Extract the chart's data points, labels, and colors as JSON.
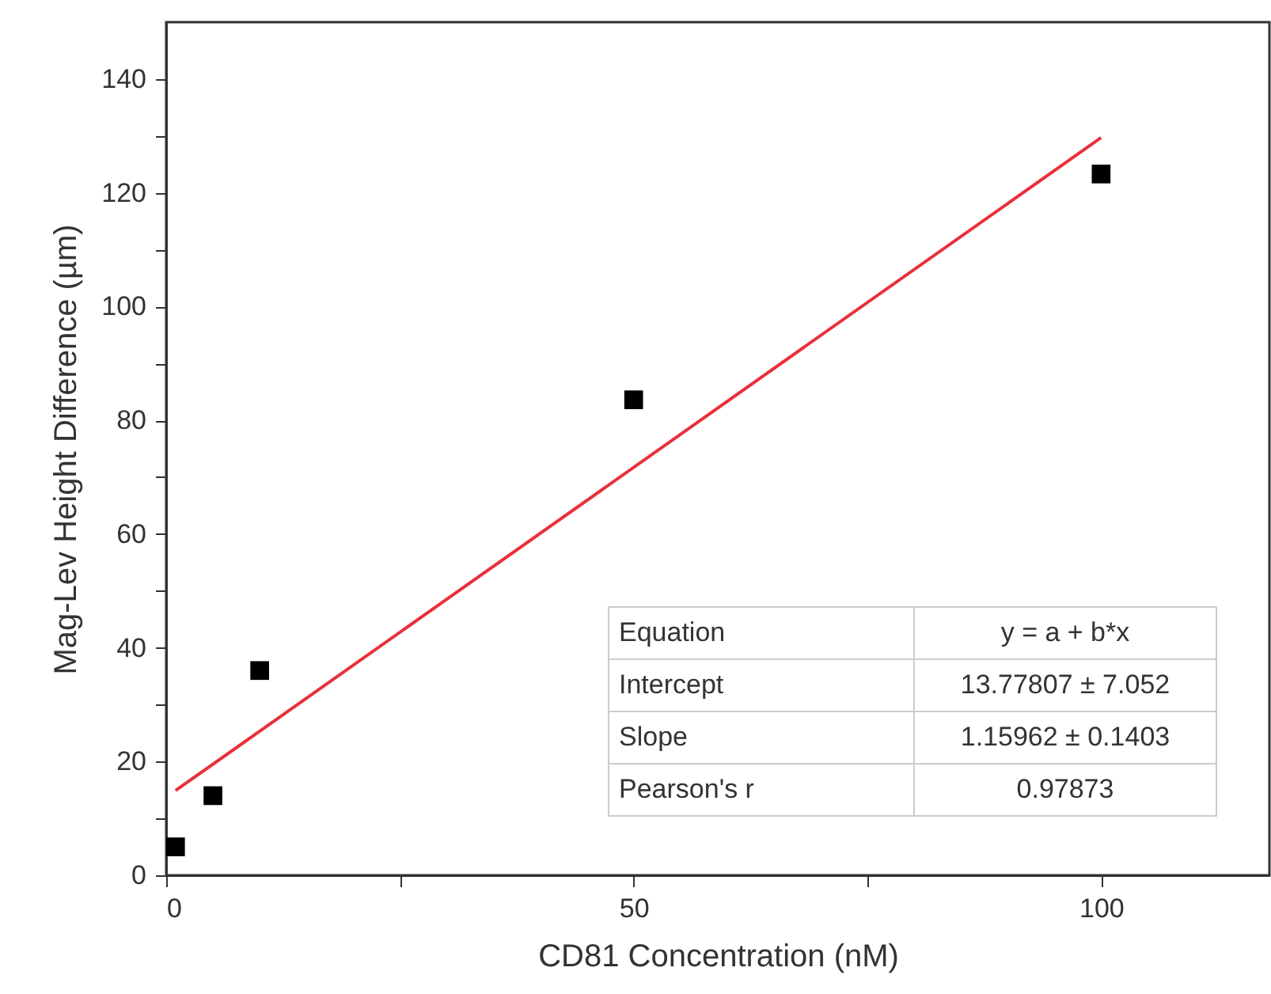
{
  "chart_data": {
    "type": "scatter",
    "xlabel": "CD81 Concentration (nM)",
    "ylabel": "Mag-Lev Height Difference (µm)",
    "xlim": [
      0,
      118
    ],
    "xticks": [
      0,
      {
        "value": 25,
        "label": null
      },
      50,
      {
        "value": 75,
        "label": null
      },
      100
    ],
    "ylim": [
      0,
      150
    ],
    "yticks": [
      0,
      {
        "value": 10,
        "label": null
      },
      20,
      {
        "value": 30,
        "label": null
      },
      40,
      {
        "value": 50,
        "label": null
      },
      60,
      {
        "value": 70,
        "label": null
      },
      80,
      {
        "value": 90,
        "label": null
      },
      100,
      {
        "value": 110,
        "label": null
      },
      120,
      {
        "value": 130,
        "label": null
      },
      140
    ],
    "marker": "square",
    "grid": false,
    "series": [
      {
        "color": "#000000",
        "x": [
          1,
          5,
          10,
          50,
          100
        ],
        "values": [
          5,
          14,
          36,
          83.6,
          123.3
        ]
      },
      {
        "type": "line",
        "marker": "none",
        "color": "#e8303a",
        "x": [
          1,
          100
        ],
        "values": [
          14.9,
          129.7
        ]
      }
    ],
    "annotations": [
      "Equation",
      "y = a + b*x",
      "Intercept",
      "13.77807 ± 7.052",
      "Slope",
      "1.15962 ± 0.1403",
      "Pearson's r",
      "0.97873"
    ]
  }
}
